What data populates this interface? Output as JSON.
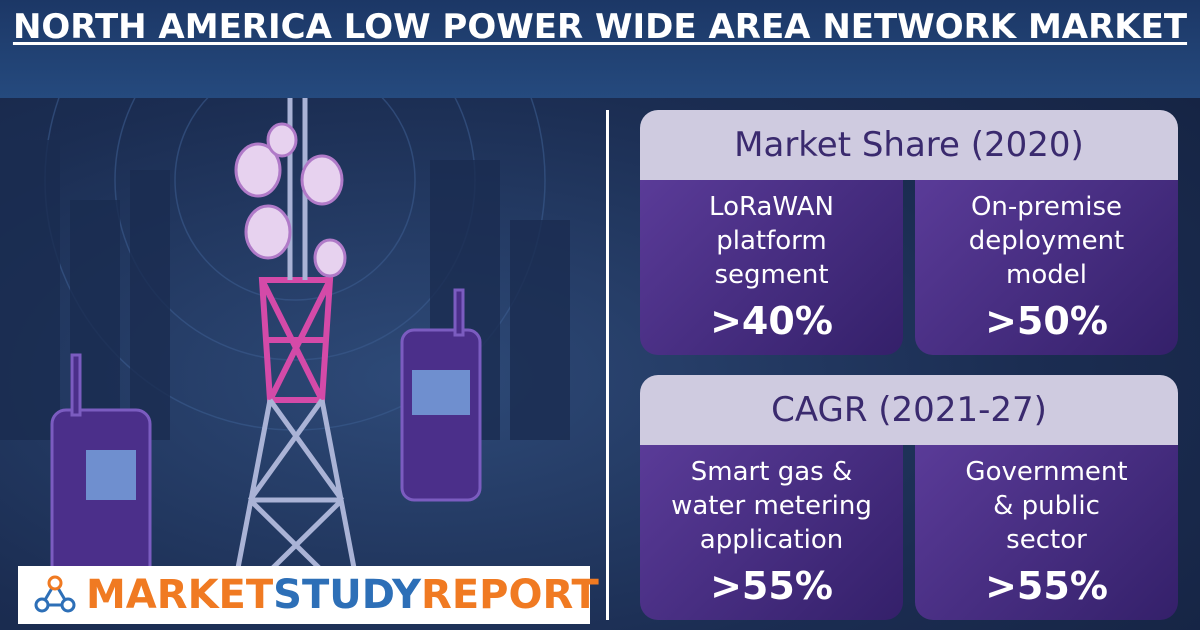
{
  "header": {
    "title": "NORTH AMERICA LOW POWER WIDE AREA NETWORK MARKET"
  },
  "sections": [
    {
      "heading": "Market Share (2020)",
      "items": [
        {
          "label_lines": [
            "LoRaWAN",
            "platform",
            "segment"
          ],
          "value": ">40%"
        },
        {
          "label_lines": [
            "On-premise",
            "deployment",
            "model"
          ],
          "value": ">50%"
        }
      ]
    },
    {
      "heading": "CAGR (2021-27)",
      "items": [
        {
          "label_lines": [
            "Smart gas &",
            "water metering",
            "application"
          ],
          "value": ">55%"
        },
        {
          "label_lines": [
            "Government",
            "& public",
            "sector"
          ],
          "value": ">55%"
        }
      ]
    }
  ],
  "logo": {
    "parts": [
      "MARKET",
      "STUDY",
      "REPORT"
    ]
  }
}
